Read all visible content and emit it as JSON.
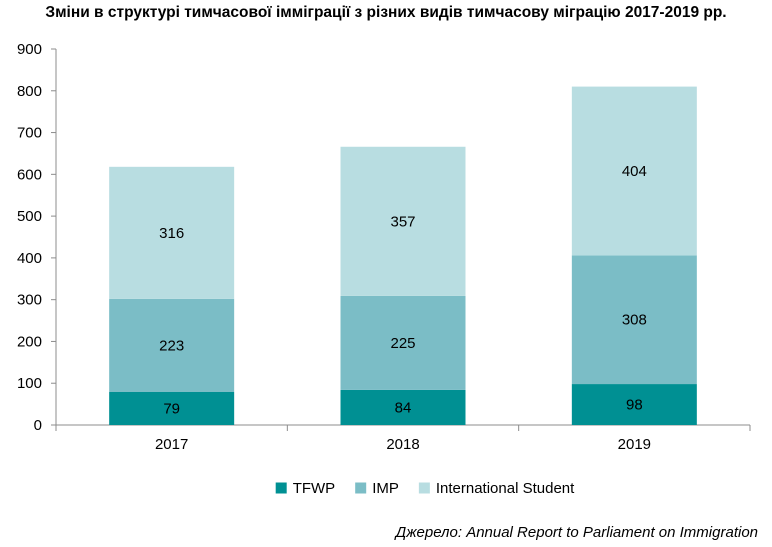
{
  "title": "Зміни в структурі тимчасової імміграції з різних видів тимчасову міграцію 2017-2019 рр.",
  "source": "Джерело: Annual Report to Parliament on Immigration",
  "chart_data": {
    "type": "bar",
    "stacked": true,
    "categories": [
      "2017",
      "2018",
      "2019"
    ],
    "series": [
      {
        "name": "TFWP",
        "color": "#009093",
        "values": [
          79,
          84,
          98
        ]
      },
      {
        "name": "IMP",
        "color": "#7bbdc6",
        "values": [
          223,
          225,
          308
        ]
      },
      {
        "name": "International Student",
        "color": "#b8dde1",
        "values": [
          316,
          357,
          404
        ]
      }
    ],
    "ylim": [
      0,
      900
    ],
    "yticks": [
      0,
      100,
      200,
      300,
      400,
      500,
      600,
      700,
      800,
      900
    ],
    "grid": false,
    "legend": "bottom"
  }
}
